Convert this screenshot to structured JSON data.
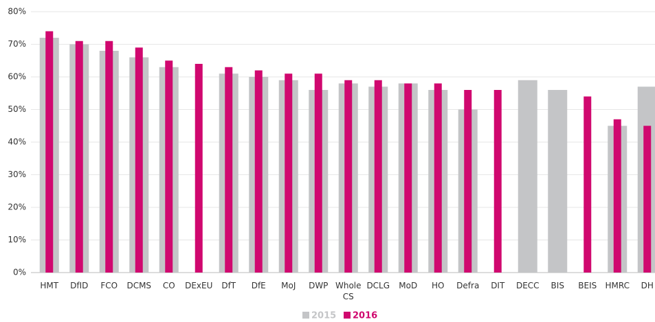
{
  "chart_data": {
    "type": "bar",
    "categories": [
      "HMT",
      "DfID",
      "FCO",
      "DCMS",
      "CO",
      "DExEU",
      "DfT",
      "DfE",
      "MoJ",
      "DWP",
      "Whole CS",
      "DCLG",
      "MoD",
      "HO",
      "Defra",
      "DIT",
      "DECC",
      "BIS",
      "BEIS",
      "HMRC",
      "DH"
    ],
    "series": [
      {
        "name": "2015",
        "color": "#c4c5c7",
        "values": [
          72,
          70,
          68,
          66,
          63,
          null,
          61,
          60,
          59,
          56,
          58,
          57,
          58,
          56,
          50,
          null,
          59,
          56,
          null,
          45,
          57
        ]
      },
      {
        "name": "2016",
        "color": "#d0086f",
        "values": [
          74,
          71,
          71,
          69,
          65,
          64,
          63,
          62,
          61,
          61,
          59,
          59,
          58,
          58,
          56,
          56,
          null,
          null,
          54,
          47,
          45
        ]
      }
    ],
    "ylim": [
      0,
      80
    ],
    "yticks": [
      {
        "value": 0,
        "label": "0%"
      },
      {
        "value": 10,
        "label": "10%"
      },
      {
        "value": 20,
        "label": "20%"
      },
      {
        "value": 30,
        "label": "30%"
      },
      {
        "value": 40,
        "label": "40%"
      },
      {
        "value": 50,
        "label": "50%"
      },
      {
        "value": 60,
        "label": "60%"
      },
      {
        "value": 70,
        "label": "70%"
      },
      {
        "value": 80,
        "label": "80%"
      }
    ],
    "grid": true,
    "legend": "bottom"
  }
}
